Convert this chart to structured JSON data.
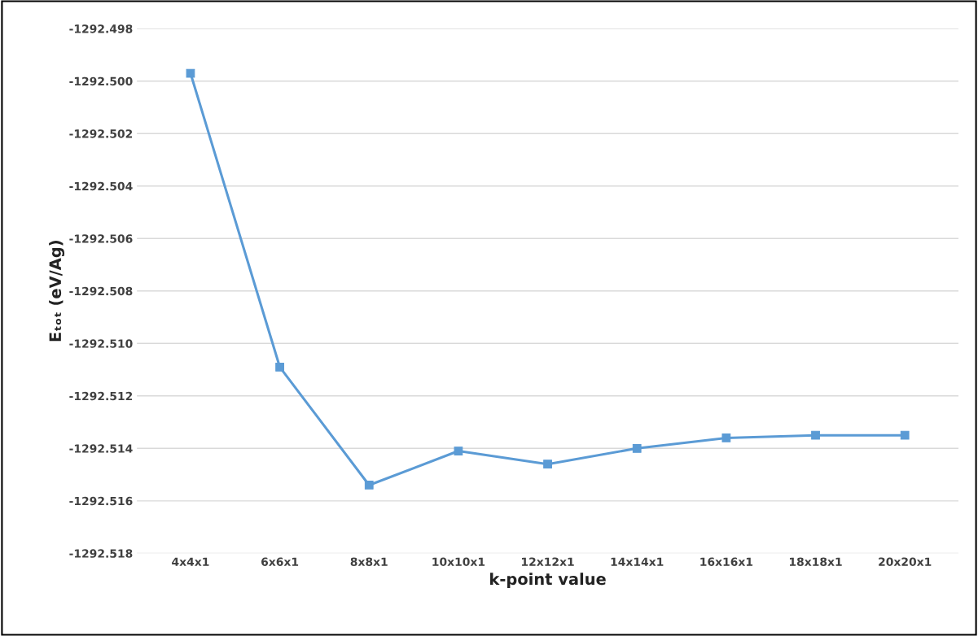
{
  "chart_data": {
    "type": "line",
    "categories": [
      "4x4x1",
      "6x6x1",
      "8x8x1",
      "10x10x1",
      "12x12x1",
      "14x14x1",
      "16x16x1",
      "18x18x1",
      "20x20x1"
    ],
    "series": [
      {
        "color": "#5b9bd5",
        "values": [
          -1292.4997,
          -1292.5109,
          -1292.5154,
          -1292.5141,
          -1292.5146,
          -1292.514,
          -1292.5136,
          -1292.5135,
          -1292.5135
        ]
      }
    ],
    "xlabel": "k-point value",
    "ylabel": "Eₜₒₜ (eV/Ag)",
    "ylim": [
      -1292.518,
      -1292.498
    ],
    "yticks": [
      {
        "value": -1292.518,
        "label": "-1292.518"
      },
      {
        "value": -1292.516,
        "label": "-1292.516"
      },
      {
        "value": -1292.514,
        "label": "-1292.514"
      },
      {
        "value": -1292.512,
        "label": "-1292.512"
      },
      {
        "value": -1292.51,
        "label": "-1292.510"
      },
      {
        "value": -1292.508,
        "label": "-1292.508"
      },
      {
        "value": -1292.506,
        "label": "-1292.506"
      },
      {
        "value": -1292.504,
        "label": "-1292.504"
      },
      {
        "value": -1292.502,
        "label": "-1292.502"
      },
      {
        "value": -1292.5,
        "label": "-1292.500"
      },
      {
        "value": -1292.498,
        "label": "-1292.498"
      }
    ],
    "grid": "y",
    "marker": "square",
    "line_style": "solid",
    "legend": false
  }
}
